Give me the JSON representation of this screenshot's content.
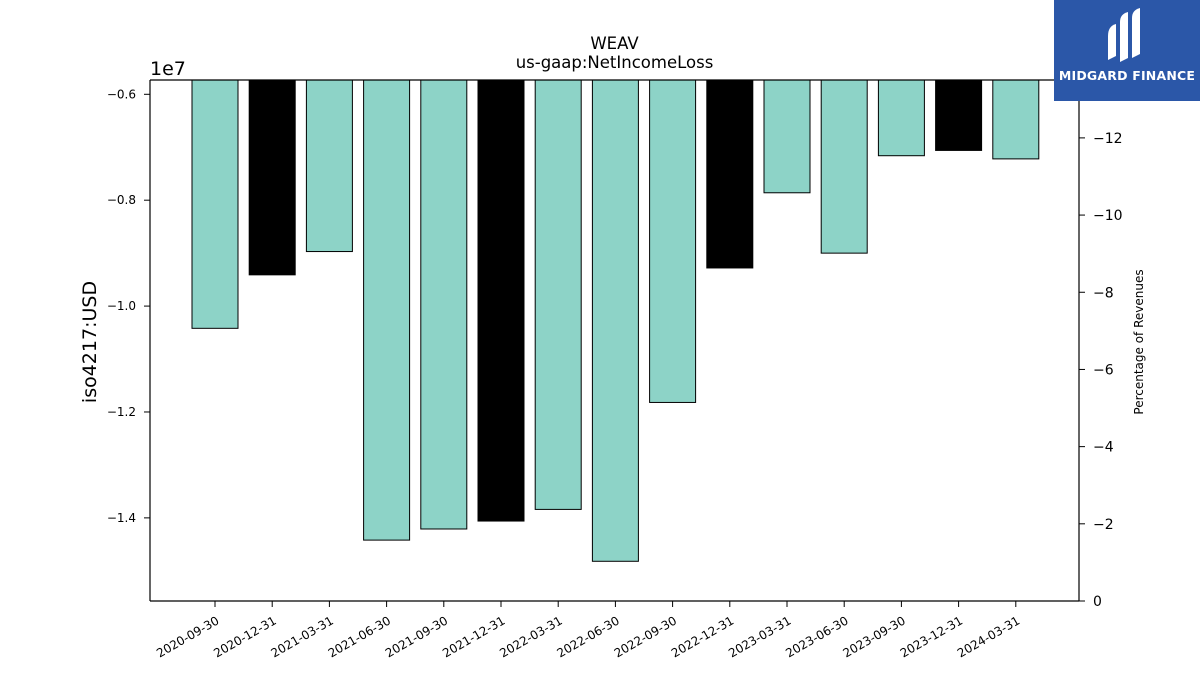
{
  "chart_data": {
    "type": "bar",
    "title": "WEAV",
    "subtitle": "us-gaap:NetIncomeLoss",
    "ylabel": "iso4217:USD",
    "y2label": "Percentage of Revenues",
    "offset_label": "1e7",
    "categories": [
      "2020-09-30",
      "2020-12-31",
      "2021-03-31",
      "2021-06-30",
      "2021-09-30",
      "2021-12-31",
      "2022-03-31",
      "2022-06-30",
      "2022-09-30",
      "2022-12-31",
      "2023-03-31",
      "2023-06-30",
      "2023-09-30",
      "2023-12-31",
      "2024-03-31"
    ],
    "values": [
      -10.42,
      -9.41,
      -8.97,
      -14.42,
      -14.21,
      -14.06,
      -13.84,
      -14.82,
      -11.82,
      -9.28,
      -7.86,
      -9.0,
      -7.16,
      -7.06,
      -7.22
    ],
    "value_scale": 10000000.0,
    "colors": [
      "#8dd3c7",
      "#000000",
      "#8dd3c7",
      "#8dd3c7",
      "#8dd3c7",
      "#000000",
      "#8dd3c7",
      "#8dd3c7",
      "#8dd3c7",
      "#000000",
      "#8dd3c7",
      "#8dd3c7",
      "#8dd3c7",
      "#000000",
      "#8dd3c7"
    ],
    "ylim": [
      -15.57,
      -5.73
    ],
    "yticks": [
      -0.6,
      -0.8,
      -1.0,
      -1.2,
      -1.4
    ],
    "ytick_labels": [
      "−0.6",
      "−0.8",
      "−1.0",
      "−1.2",
      "−1.4"
    ],
    "y2lim": [
      0,
      -13.5
    ],
    "y2ticks": [
      -12,
      -10,
      -8,
      -6,
      -4,
      -2,
      0
    ],
    "y2tick_labels": [
      "−12",
      "−10",
      "−8",
      "−6",
      "−4",
      "−2",
      "0"
    ],
    "grid": false,
    "legend": "none"
  },
  "brand": {
    "name": "MIDGARD FINANCE",
    "background": "#2b57a8",
    "text_color": "#ffffff"
  }
}
